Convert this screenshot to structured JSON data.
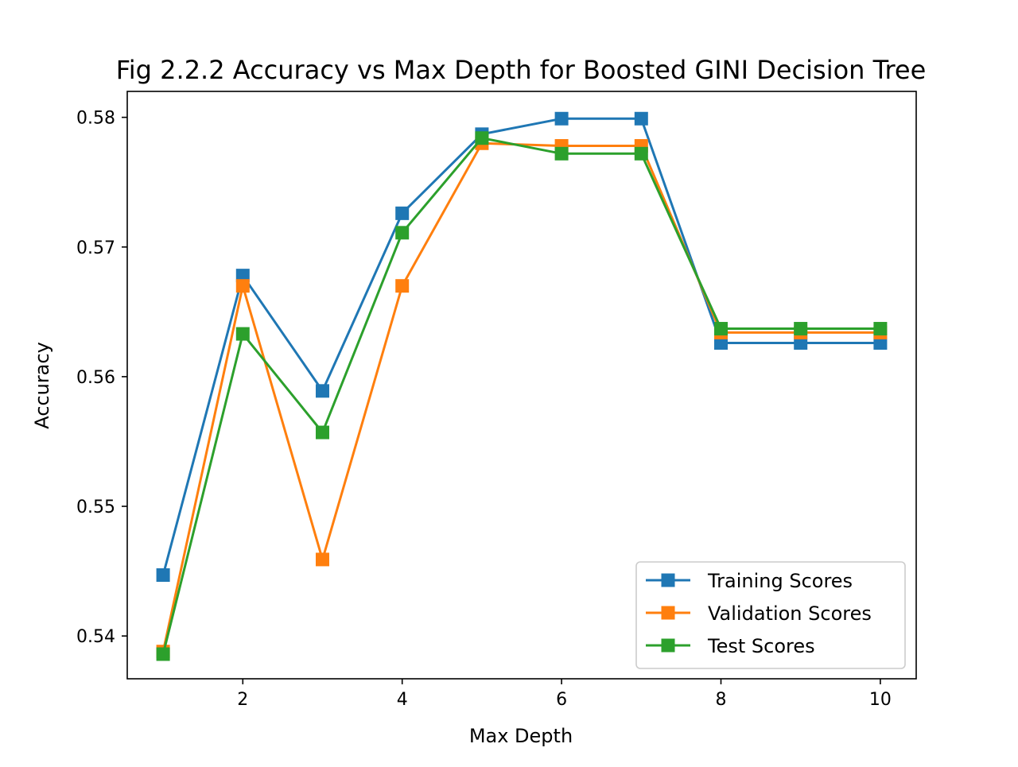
{
  "chart_data": {
    "type": "line",
    "title": "Fig 2.2.2 Accuracy vs Max Depth for Boosted GINI Decision Tree",
    "xlabel": "Max Depth",
    "ylabel": "Accuracy",
    "x": [
      1,
      2,
      3,
      4,
      5,
      6,
      7,
      8,
      9,
      10
    ],
    "xlim": [
      0.55,
      10.45
    ],
    "ylim": [
      0.5367,
      0.582
    ],
    "xticks": [
      2,
      4,
      6,
      8,
      10
    ],
    "xtick_labels": [
      "2",
      "4",
      "6",
      "8",
      "10"
    ],
    "yticks": [
      0.54,
      0.55,
      0.56,
      0.57,
      0.58
    ],
    "ytick_labels": [
      "0.54",
      "0.55",
      "0.56",
      "0.57",
      "0.58"
    ],
    "grid": false,
    "legend_position": "lower-right",
    "marker": "square",
    "series": [
      {
        "name": "Training Scores",
        "color": "#1f77b4",
        "values": [
          0.5447,
          0.5678,
          0.5589,
          0.5726,
          0.5787,
          0.5799,
          0.5799,
          0.5626,
          0.5626,
          0.5626
        ]
      },
      {
        "name": "Validation Scores",
        "color": "#ff7f0e",
        "values": [
          0.5388,
          0.567,
          0.5459,
          0.567,
          0.578,
          0.5778,
          0.5778,
          0.5634,
          0.5634,
          0.5634
        ]
      },
      {
        "name": "Test Scores",
        "color": "#2ca02c",
        "values": [
          0.5386,
          0.5633,
          0.5557,
          0.5711,
          0.5784,
          0.5772,
          0.5772,
          0.5637,
          0.5637,
          0.5637
        ]
      }
    ]
  }
}
